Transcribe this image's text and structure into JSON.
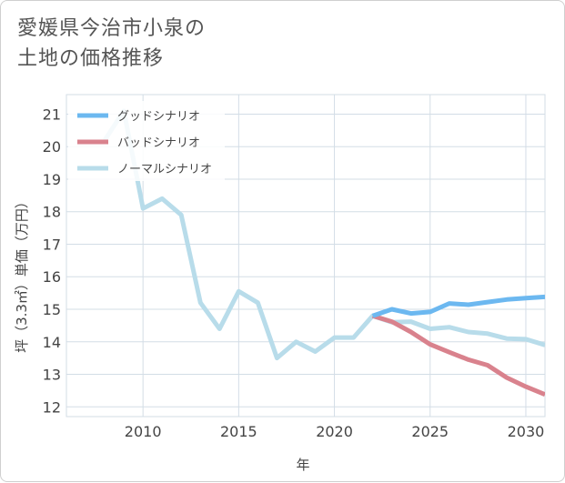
{
  "title_line1": "愛媛県今治市小泉の",
  "title_line2": "土地の価格推移",
  "colors": {
    "good": "#6cb8f0",
    "bad": "#d9828d",
    "normal": "#b8dcea",
    "grid": "#d3dde6",
    "axis_text": "#444444"
  },
  "chart_data": {
    "type": "line",
    "title": "",
    "xlabel": "年",
    "ylabel": "坪（3.3㎡）単価（万円）",
    "xlim": [
      2006,
      2031
    ],
    "ylim": [
      11.7,
      21.6
    ],
    "xticks": [
      2010,
      2015,
      2020,
      2025,
      2030
    ],
    "yticks": [
      12,
      13,
      14,
      15,
      16,
      17,
      18,
      19,
      20,
      21
    ],
    "grid": true,
    "legend_position": "top-left",
    "series": [
      {
        "name": "グッドシナリオ",
        "color_key": "good",
        "x": [
          2022,
          2023,
          2024,
          2025,
          2026,
          2027,
          2028,
          2029,
          2030,
          2031
        ],
        "y": [
          14.8,
          15.0,
          14.87,
          14.92,
          15.18,
          15.14,
          15.22,
          15.3,
          15.34,
          15.38
        ]
      },
      {
        "name": "バッドシナリオ",
        "color_key": "bad",
        "x": [
          2022,
          2023,
          2024,
          2025,
          2026,
          2027,
          2028,
          2029,
          2030,
          2031
        ],
        "y": [
          14.8,
          14.62,
          14.3,
          13.92,
          13.68,
          13.45,
          13.28,
          12.9,
          12.62,
          12.38
        ]
      },
      {
        "name": "ノーマルシナリオ",
        "color_key": "normal",
        "x": [
          2008,
          2009,
          2010,
          2011,
          2012,
          2013,
          2014,
          2015,
          2016,
          2017,
          2018,
          2019,
          2020,
          2021,
          2022,
          2023,
          2024,
          2025,
          2026,
          2027,
          2028,
          2029,
          2030,
          2031
        ],
        "y": [
          20.2,
          21.1,
          18.1,
          18.4,
          17.9,
          15.2,
          14.4,
          15.55,
          15.2,
          13.5,
          14.0,
          13.7,
          14.13,
          14.13,
          14.8,
          14.6,
          14.62,
          14.4,
          14.45,
          14.3,
          14.25,
          14.1,
          14.08,
          13.9
        ]
      }
    ]
  }
}
